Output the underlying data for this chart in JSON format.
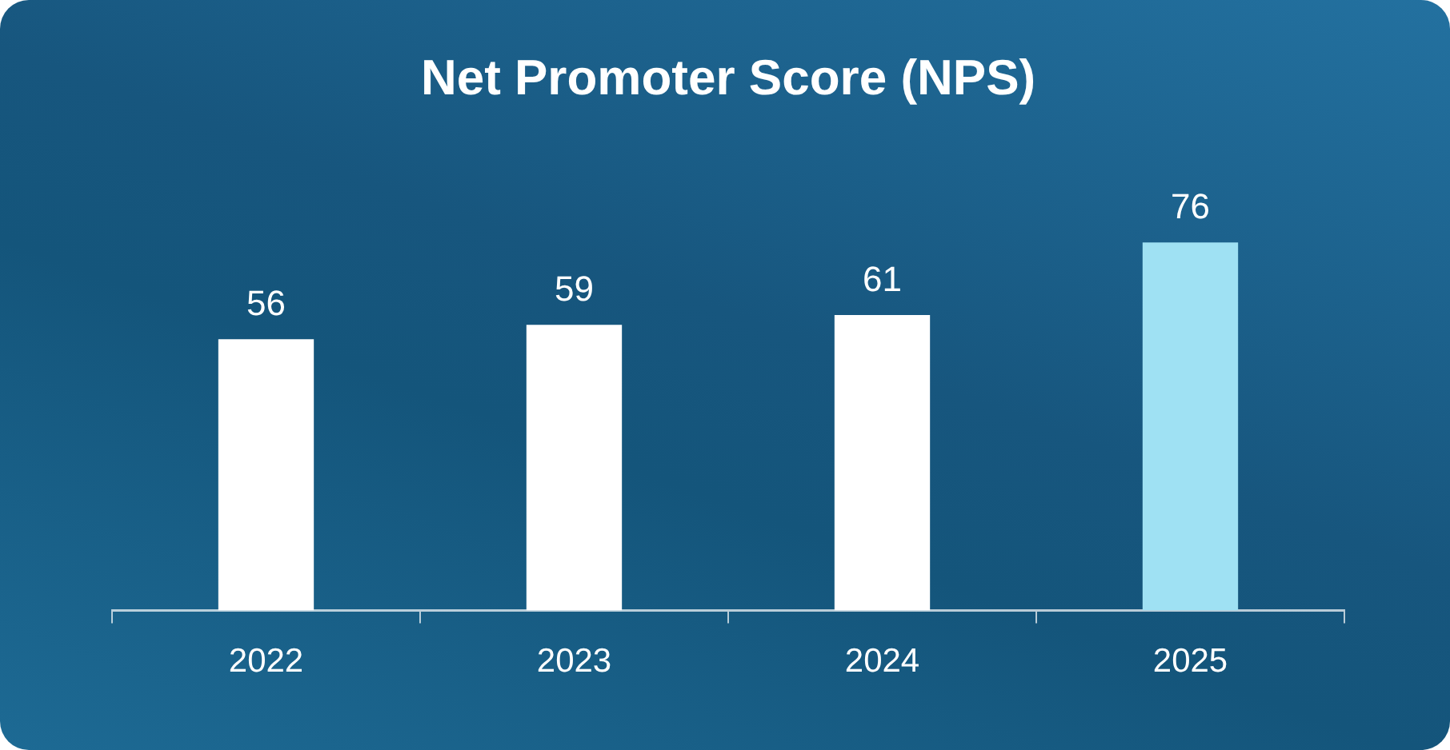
{
  "chart_data": {
    "type": "bar",
    "title": "Net Promoter Score (NPS)",
    "categories": [
      "2022",
      "2023",
      "2024",
      "2025"
    ],
    "values": [
      56,
      59,
      61,
      76
    ],
    "colors": [
      "#ffffff",
      "#ffffff",
      "#ffffff",
      "#9fe1f3"
    ],
    "data_labels": true
  }
}
